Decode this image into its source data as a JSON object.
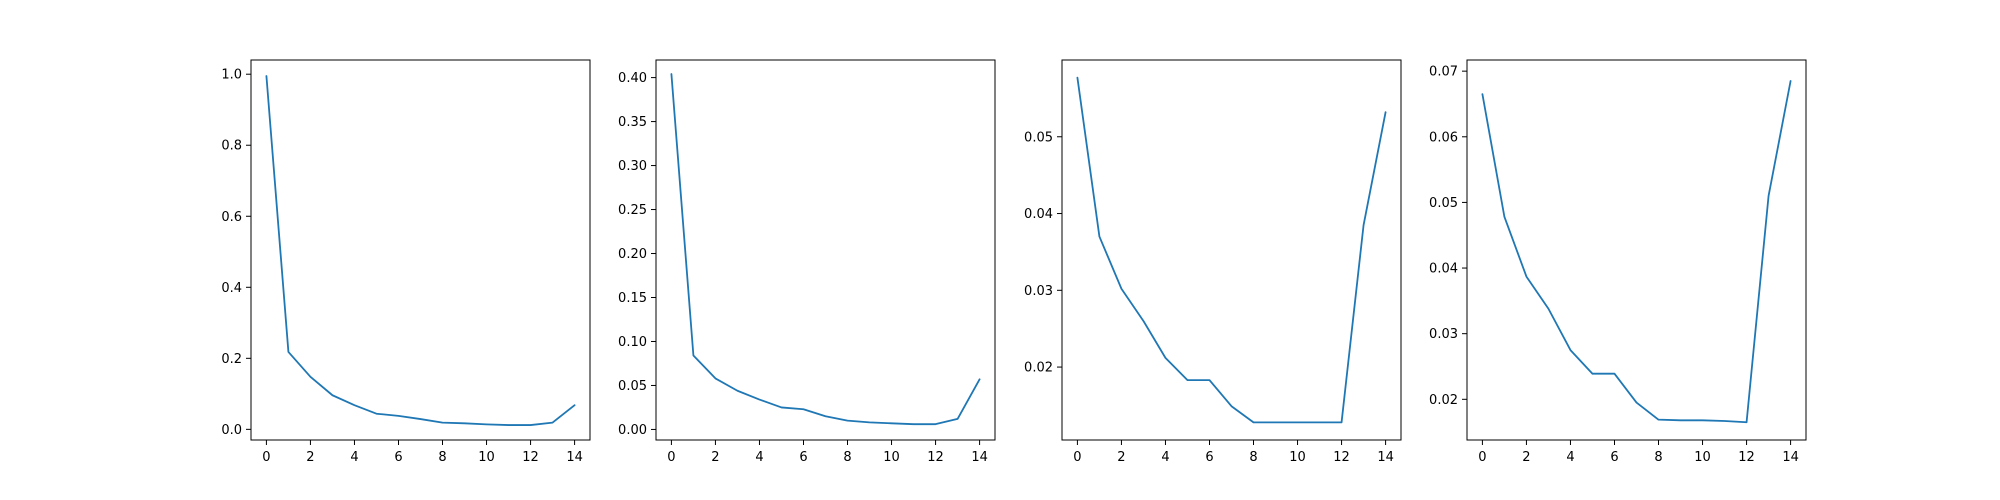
{
  "colors": {
    "line": "#1f77b4",
    "axis": "#000000",
    "background": "#ffffff"
  },
  "chart_data": [
    {
      "type": "line",
      "title": "",
      "xlabel": "",
      "ylabel": "",
      "grid": false,
      "xlim": [
        -0.7,
        14.7
      ],
      "ylim": [
        -0.03,
        1.04
      ],
      "xticks": [
        0,
        2,
        4,
        6,
        8,
        10,
        12,
        14
      ],
      "xtick_labels": [
        "0",
        "2",
        "4",
        "6",
        "8",
        "10",
        "12",
        "14"
      ],
      "yticks": [
        0.0,
        0.2,
        0.4,
        0.6,
        0.8,
        1.0
      ],
      "ytick_labels": [
        "0.0",
        "0.2",
        "0.4",
        "0.6",
        "0.8",
        "1.0"
      ],
      "x": [
        0,
        1,
        2,
        3,
        4,
        5,
        6,
        7,
        8,
        9,
        10,
        11,
        12,
        13,
        14
      ],
      "series": [
        {
          "values": [
            0.995,
            0.218,
            0.148,
            0.096,
            0.068,
            0.044,
            0.038,
            0.029,
            0.019,
            0.017,
            0.014,
            0.012,
            0.012,
            0.019,
            0.068
          ]
        }
      ]
    },
    {
      "type": "line",
      "title": "",
      "xlabel": "",
      "ylabel": "",
      "grid": false,
      "xlim": [
        -0.7,
        14.7
      ],
      "ylim": [
        -0.012,
        0.42
      ],
      "xticks": [
        0,
        2,
        4,
        6,
        8,
        10,
        12,
        14
      ],
      "xtick_labels": [
        "0",
        "2",
        "4",
        "6",
        "8",
        "10",
        "12",
        "14"
      ],
      "yticks": [
        0.0,
        0.05,
        0.1,
        0.15,
        0.2,
        0.25,
        0.3,
        0.35,
        0.4
      ],
      "ytick_labels": [
        "0.00",
        "0.05",
        "0.10",
        "0.15",
        "0.20",
        "0.25",
        "0.30",
        "0.35",
        "0.40"
      ],
      "x": [
        0,
        1,
        2,
        3,
        4,
        5,
        6,
        7,
        8,
        9,
        10,
        11,
        12,
        13,
        14
      ],
      "series": [
        {
          "values": [
            0.404,
            0.084,
            0.058,
            0.044,
            0.034,
            0.025,
            0.023,
            0.015,
            0.01,
            0.008,
            0.007,
            0.006,
            0.006,
            0.012,
            0.057
          ]
        }
      ]
    },
    {
      "type": "line",
      "title": "",
      "xlabel": "",
      "ylabel": "",
      "grid": false,
      "xlim": [
        -0.7,
        14.7
      ],
      "ylim": [
        0.0105,
        0.06
      ],
      "xticks": [
        0,
        2,
        4,
        6,
        8,
        10,
        12,
        14
      ],
      "xtick_labels": [
        "0",
        "2",
        "4",
        "6",
        "8",
        "10",
        "12",
        "14"
      ],
      "yticks": [
        0.02,
        0.03,
        0.04,
        0.05
      ],
      "ytick_labels": [
        "0.02",
        "0.03",
        "0.04",
        "0.05"
      ],
      "x": [
        0,
        1,
        2,
        3,
        4,
        5,
        6,
        7,
        8,
        9,
        10,
        11,
        12,
        13,
        14
      ],
      "series": [
        {
          "values": [
            0.0577,
            0.037,
            0.0302,
            0.026,
            0.0212,
            0.0183,
            0.0183,
            0.0149,
            0.0128,
            0.0128,
            0.0128,
            0.0128,
            0.0128,
            0.0385,
            0.0532
          ]
        }
      ]
    },
    {
      "type": "line",
      "title": "",
      "xlabel": "",
      "ylabel": "",
      "grid": false,
      "xlim": [
        -0.7,
        14.7
      ],
      "ylim": [
        0.0138,
        0.0717
      ],
      "xticks": [
        0,
        2,
        4,
        6,
        8,
        10,
        12,
        14
      ],
      "xtick_labels": [
        "0",
        "2",
        "4",
        "6",
        "8",
        "10",
        "12",
        "14"
      ],
      "yticks": [
        0.02,
        0.03,
        0.04,
        0.05,
        0.06,
        0.07
      ],
      "ytick_labels": [
        "0.02",
        "0.03",
        "0.04",
        "0.05",
        "0.06",
        "0.07"
      ],
      "x": [
        0,
        1,
        2,
        3,
        4,
        5,
        6,
        7,
        8,
        9,
        10,
        11,
        12,
        13,
        14
      ],
      "series": [
        {
          "values": [
            0.0665,
            0.0478,
            0.0387,
            0.0338,
            0.0275,
            0.0239,
            0.0239,
            0.0195,
            0.0169,
            0.0168,
            0.0168,
            0.0167,
            0.0165,
            0.051,
            0.0685
          ]
        }
      ]
    }
  ]
}
